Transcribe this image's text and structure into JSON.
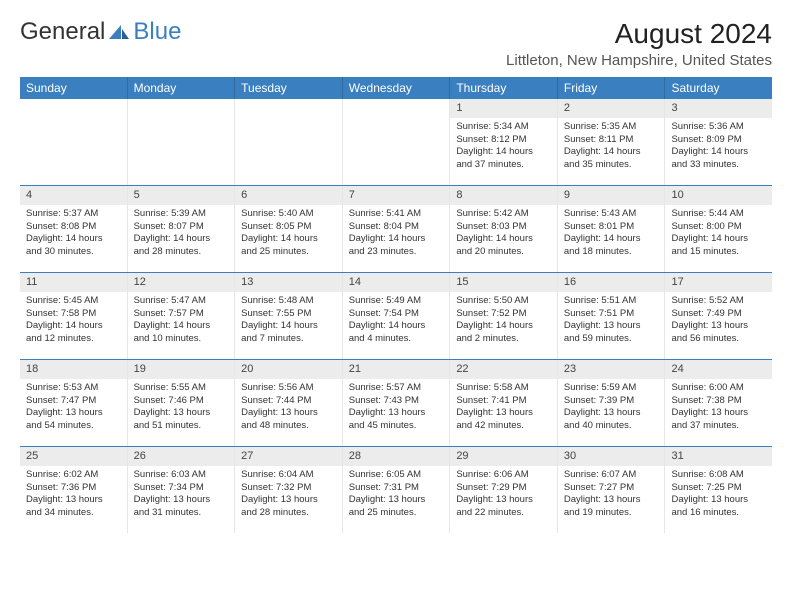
{
  "brand": {
    "name_1": "General",
    "name_2": "Blue"
  },
  "header": {
    "month_title": "August 2024",
    "location": "Littleton, New Hampshire, United States"
  },
  "colors": {
    "header_bg": "#3a7fc0",
    "week_divider": "#3a7fc0",
    "daynum_bg": "#ececec",
    "text": "#333333",
    "location_text": "#555555"
  },
  "day_names": [
    "Sunday",
    "Monday",
    "Tuesday",
    "Wednesday",
    "Thursday",
    "Friday",
    "Saturday"
  ],
  "weeks": [
    [
      {
        "empty": true
      },
      {
        "empty": true
      },
      {
        "empty": true
      },
      {
        "empty": true
      },
      {
        "n": "1",
        "sunrise": "Sunrise: 5:34 AM",
        "sunset": "Sunset: 8:12 PM",
        "daylight": "Daylight: 14 hours and 37 minutes."
      },
      {
        "n": "2",
        "sunrise": "Sunrise: 5:35 AM",
        "sunset": "Sunset: 8:11 PM",
        "daylight": "Daylight: 14 hours and 35 minutes."
      },
      {
        "n": "3",
        "sunrise": "Sunrise: 5:36 AM",
        "sunset": "Sunset: 8:09 PM",
        "daylight": "Daylight: 14 hours and 33 minutes."
      }
    ],
    [
      {
        "n": "4",
        "sunrise": "Sunrise: 5:37 AM",
        "sunset": "Sunset: 8:08 PM",
        "daylight": "Daylight: 14 hours and 30 minutes."
      },
      {
        "n": "5",
        "sunrise": "Sunrise: 5:39 AM",
        "sunset": "Sunset: 8:07 PM",
        "daylight": "Daylight: 14 hours and 28 minutes."
      },
      {
        "n": "6",
        "sunrise": "Sunrise: 5:40 AM",
        "sunset": "Sunset: 8:05 PM",
        "daylight": "Daylight: 14 hours and 25 minutes."
      },
      {
        "n": "7",
        "sunrise": "Sunrise: 5:41 AM",
        "sunset": "Sunset: 8:04 PM",
        "daylight": "Daylight: 14 hours and 23 minutes."
      },
      {
        "n": "8",
        "sunrise": "Sunrise: 5:42 AM",
        "sunset": "Sunset: 8:03 PM",
        "daylight": "Daylight: 14 hours and 20 minutes."
      },
      {
        "n": "9",
        "sunrise": "Sunrise: 5:43 AM",
        "sunset": "Sunset: 8:01 PM",
        "daylight": "Daylight: 14 hours and 18 minutes."
      },
      {
        "n": "10",
        "sunrise": "Sunrise: 5:44 AM",
        "sunset": "Sunset: 8:00 PM",
        "daylight": "Daylight: 14 hours and 15 minutes."
      }
    ],
    [
      {
        "n": "11",
        "sunrise": "Sunrise: 5:45 AM",
        "sunset": "Sunset: 7:58 PM",
        "daylight": "Daylight: 14 hours and 12 minutes."
      },
      {
        "n": "12",
        "sunrise": "Sunrise: 5:47 AM",
        "sunset": "Sunset: 7:57 PM",
        "daylight": "Daylight: 14 hours and 10 minutes."
      },
      {
        "n": "13",
        "sunrise": "Sunrise: 5:48 AM",
        "sunset": "Sunset: 7:55 PM",
        "daylight": "Daylight: 14 hours and 7 minutes."
      },
      {
        "n": "14",
        "sunrise": "Sunrise: 5:49 AM",
        "sunset": "Sunset: 7:54 PM",
        "daylight": "Daylight: 14 hours and 4 minutes."
      },
      {
        "n": "15",
        "sunrise": "Sunrise: 5:50 AM",
        "sunset": "Sunset: 7:52 PM",
        "daylight": "Daylight: 14 hours and 2 minutes."
      },
      {
        "n": "16",
        "sunrise": "Sunrise: 5:51 AM",
        "sunset": "Sunset: 7:51 PM",
        "daylight": "Daylight: 13 hours and 59 minutes."
      },
      {
        "n": "17",
        "sunrise": "Sunrise: 5:52 AM",
        "sunset": "Sunset: 7:49 PM",
        "daylight": "Daylight: 13 hours and 56 minutes."
      }
    ],
    [
      {
        "n": "18",
        "sunrise": "Sunrise: 5:53 AM",
        "sunset": "Sunset: 7:47 PM",
        "daylight": "Daylight: 13 hours and 54 minutes."
      },
      {
        "n": "19",
        "sunrise": "Sunrise: 5:55 AM",
        "sunset": "Sunset: 7:46 PM",
        "daylight": "Daylight: 13 hours and 51 minutes."
      },
      {
        "n": "20",
        "sunrise": "Sunrise: 5:56 AM",
        "sunset": "Sunset: 7:44 PM",
        "daylight": "Daylight: 13 hours and 48 minutes."
      },
      {
        "n": "21",
        "sunrise": "Sunrise: 5:57 AM",
        "sunset": "Sunset: 7:43 PM",
        "daylight": "Daylight: 13 hours and 45 minutes."
      },
      {
        "n": "22",
        "sunrise": "Sunrise: 5:58 AM",
        "sunset": "Sunset: 7:41 PM",
        "daylight": "Daylight: 13 hours and 42 minutes."
      },
      {
        "n": "23",
        "sunrise": "Sunrise: 5:59 AM",
        "sunset": "Sunset: 7:39 PM",
        "daylight": "Daylight: 13 hours and 40 minutes."
      },
      {
        "n": "24",
        "sunrise": "Sunrise: 6:00 AM",
        "sunset": "Sunset: 7:38 PM",
        "daylight": "Daylight: 13 hours and 37 minutes."
      }
    ],
    [
      {
        "n": "25",
        "sunrise": "Sunrise: 6:02 AM",
        "sunset": "Sunset: 7:36 PM",
        "daylight": "Daylight: 13 hours and 34 minutes."
      },
      {
        "n": "26",
        "sunrise": "Sunrise: 6:03 AM",
        "sunset": "Sunset: 7:34 PM",
        "daylight": "Daylight: 13 hours and 31 minutes."
      },
      {
        "n": "27",
        "sunrise": "Sunrise: 6:04 AM",
        "sunset": "Sunset: 7:32 PM",
        "daylight": "Daylight: 13 hours and 28 minutes."
      },
      {
        "n": "28",
        "sunrise": "Sunrise: 6:05 AM",
        "sunset": "Sunset: 7:31 PM",
        "daylight": "Daylight: 13 hours and 25 minutes."
      },
      {
        "n": "29",
        "sunrise": "Sunrise: 6:06 AM",
        "sunset": "Sunset: 7:29 PM",
        "daylight": "Daylight: 13 hours and 22 minutes."
      },
      {
        "n": "30",
        "sunrise": "Sunrise: 6:07 AM",
        "sunset": "Sunset: 7:27 PM",
        "daylight": "Daylight: 13 hours and 19 minutes."
      },
      {
        "n": "31",
        "sunrise": "Sunrise: 6:08 AM",
        "sunset": "Sunset: 7:25 PM",
        "daylight": "Daylight: 13 hours and 16 minutes."
      }
    ]
  ]
}
